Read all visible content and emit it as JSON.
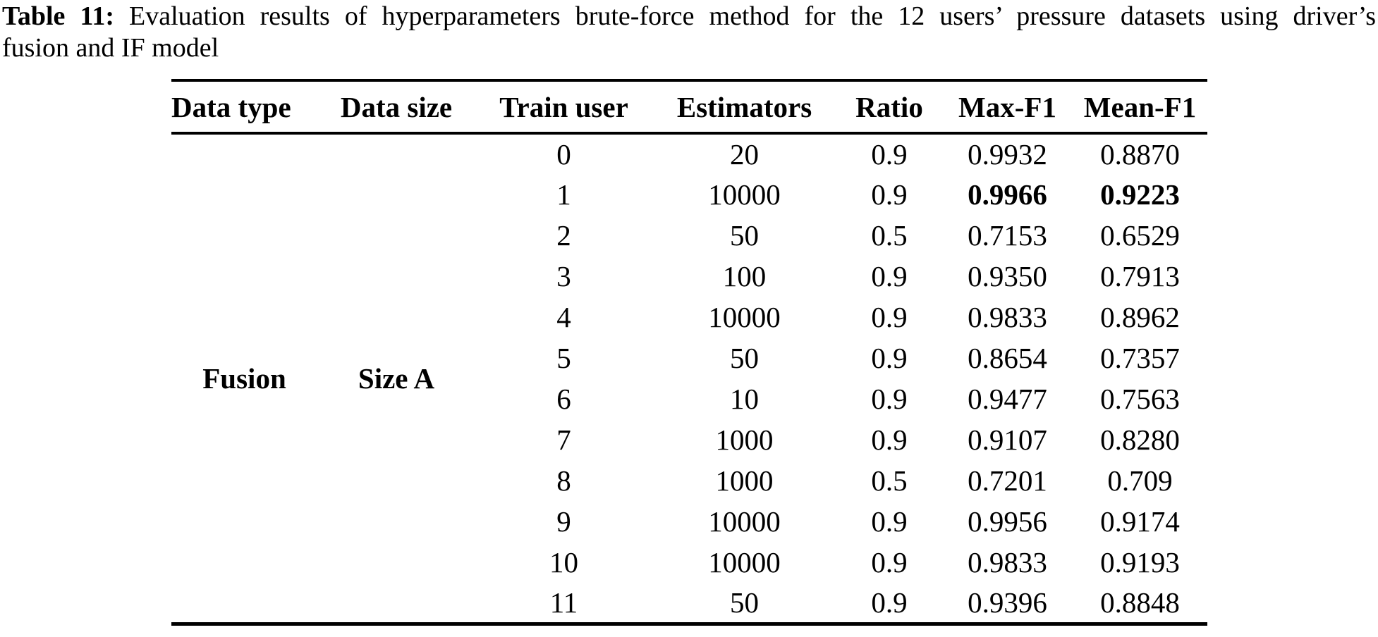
{
  "caption": {
    "label": "Table 11:",
    "line1": " Evaluation results of hyperparameters brute-force method for the 12 users’ pressure datasets using driver’s",
    "line2": "fusion and IF model"
  },
  "table": {
    "columns": [
      "Data type",
      "Data size",
      "Train user",
      "Estimators",
      "Ratio",
      "Max-F1",
      "Mean-F1"
    ],
    "data_type": "Fusion",
    "data_size": "Size A",
    "rows": [
      {
        "train_user": "0",
        "estimators": "20",
        "ratio": "0.9",
        "max_f1": "0.9932",
        "mean_f1": "0.8870",
        "bold": false
      },
      {
        "train_user": "1",
        "estimators": "10000",
        "ratio": "0.9",
        "max_f1": "0.9966",
        "mean_f1": "0.9223",
        "bold": true
      },
      {
        "train_user": "2",
        "estimators": "50",
        "ratio": "0.5",
        "max_f1": "0.7153",
        "mean_f1": "0.6529",
        "bold": false
      },
      {
        "train_user": "3",
        "estimators": "100",
        "ratio": "0.9",
        "max_f1": "0.9350",
        "mean_f1": "0.7913",
        "bold": false
      },
      {
        "train_user": "4",
        "estimators": "10000",
        "ratio": "0.9",
        "max_f1": "0.9833",
        "mean_f1": "0.8962",
        "bold": false
      },
      {
        "train_user": "5",
        "estimators": "50",
        "ratio": "0.9",
        "max_f1": "0.8654",
        "mean_f1": "0.7357",
        "bold": false
      },
      {
        "train_user": "6",
        "estimators": "10",
        "ratio": "0.9",
        "max_f1": "0.9477",
        "mean_f1": "0.7563",
        "bold": false
      },
      {
        "train_user": "7",
        "estimators": "1000",
        "ratio": "0.9",
        "max_f1": "0.9107",
        "mean_f1": "0.8280",
        "bold": false
      },
      {
        "train_user": "8",
        "estimators": "1000",
        "ratio": "0.5",
        "max_f1": "0.7201",
        "mean_f1": "0.709",
        "bold": false
      },
      {
        "train_user": "9",
        "estimators": "10000",
        "ratio": "0.9",
        "max_f1": "0.9956",
        "mean_f1": "0.9174",
        "bold": false
      },
      {
        "train_user": "10",
        "estimators": "10000",
        "ratio": "0.9",
        "max_f1": "0.9833",
        "mean_f1": "0.9193",
        "bold": false
      },
      {
        "train_user": "11",
        "estimators": "50",
        "ratio": "0.9",
        "max_f1": "0.9396",
        "mean_f1": "0.8848",
        "bold": false
      }
    ]
  }
}
